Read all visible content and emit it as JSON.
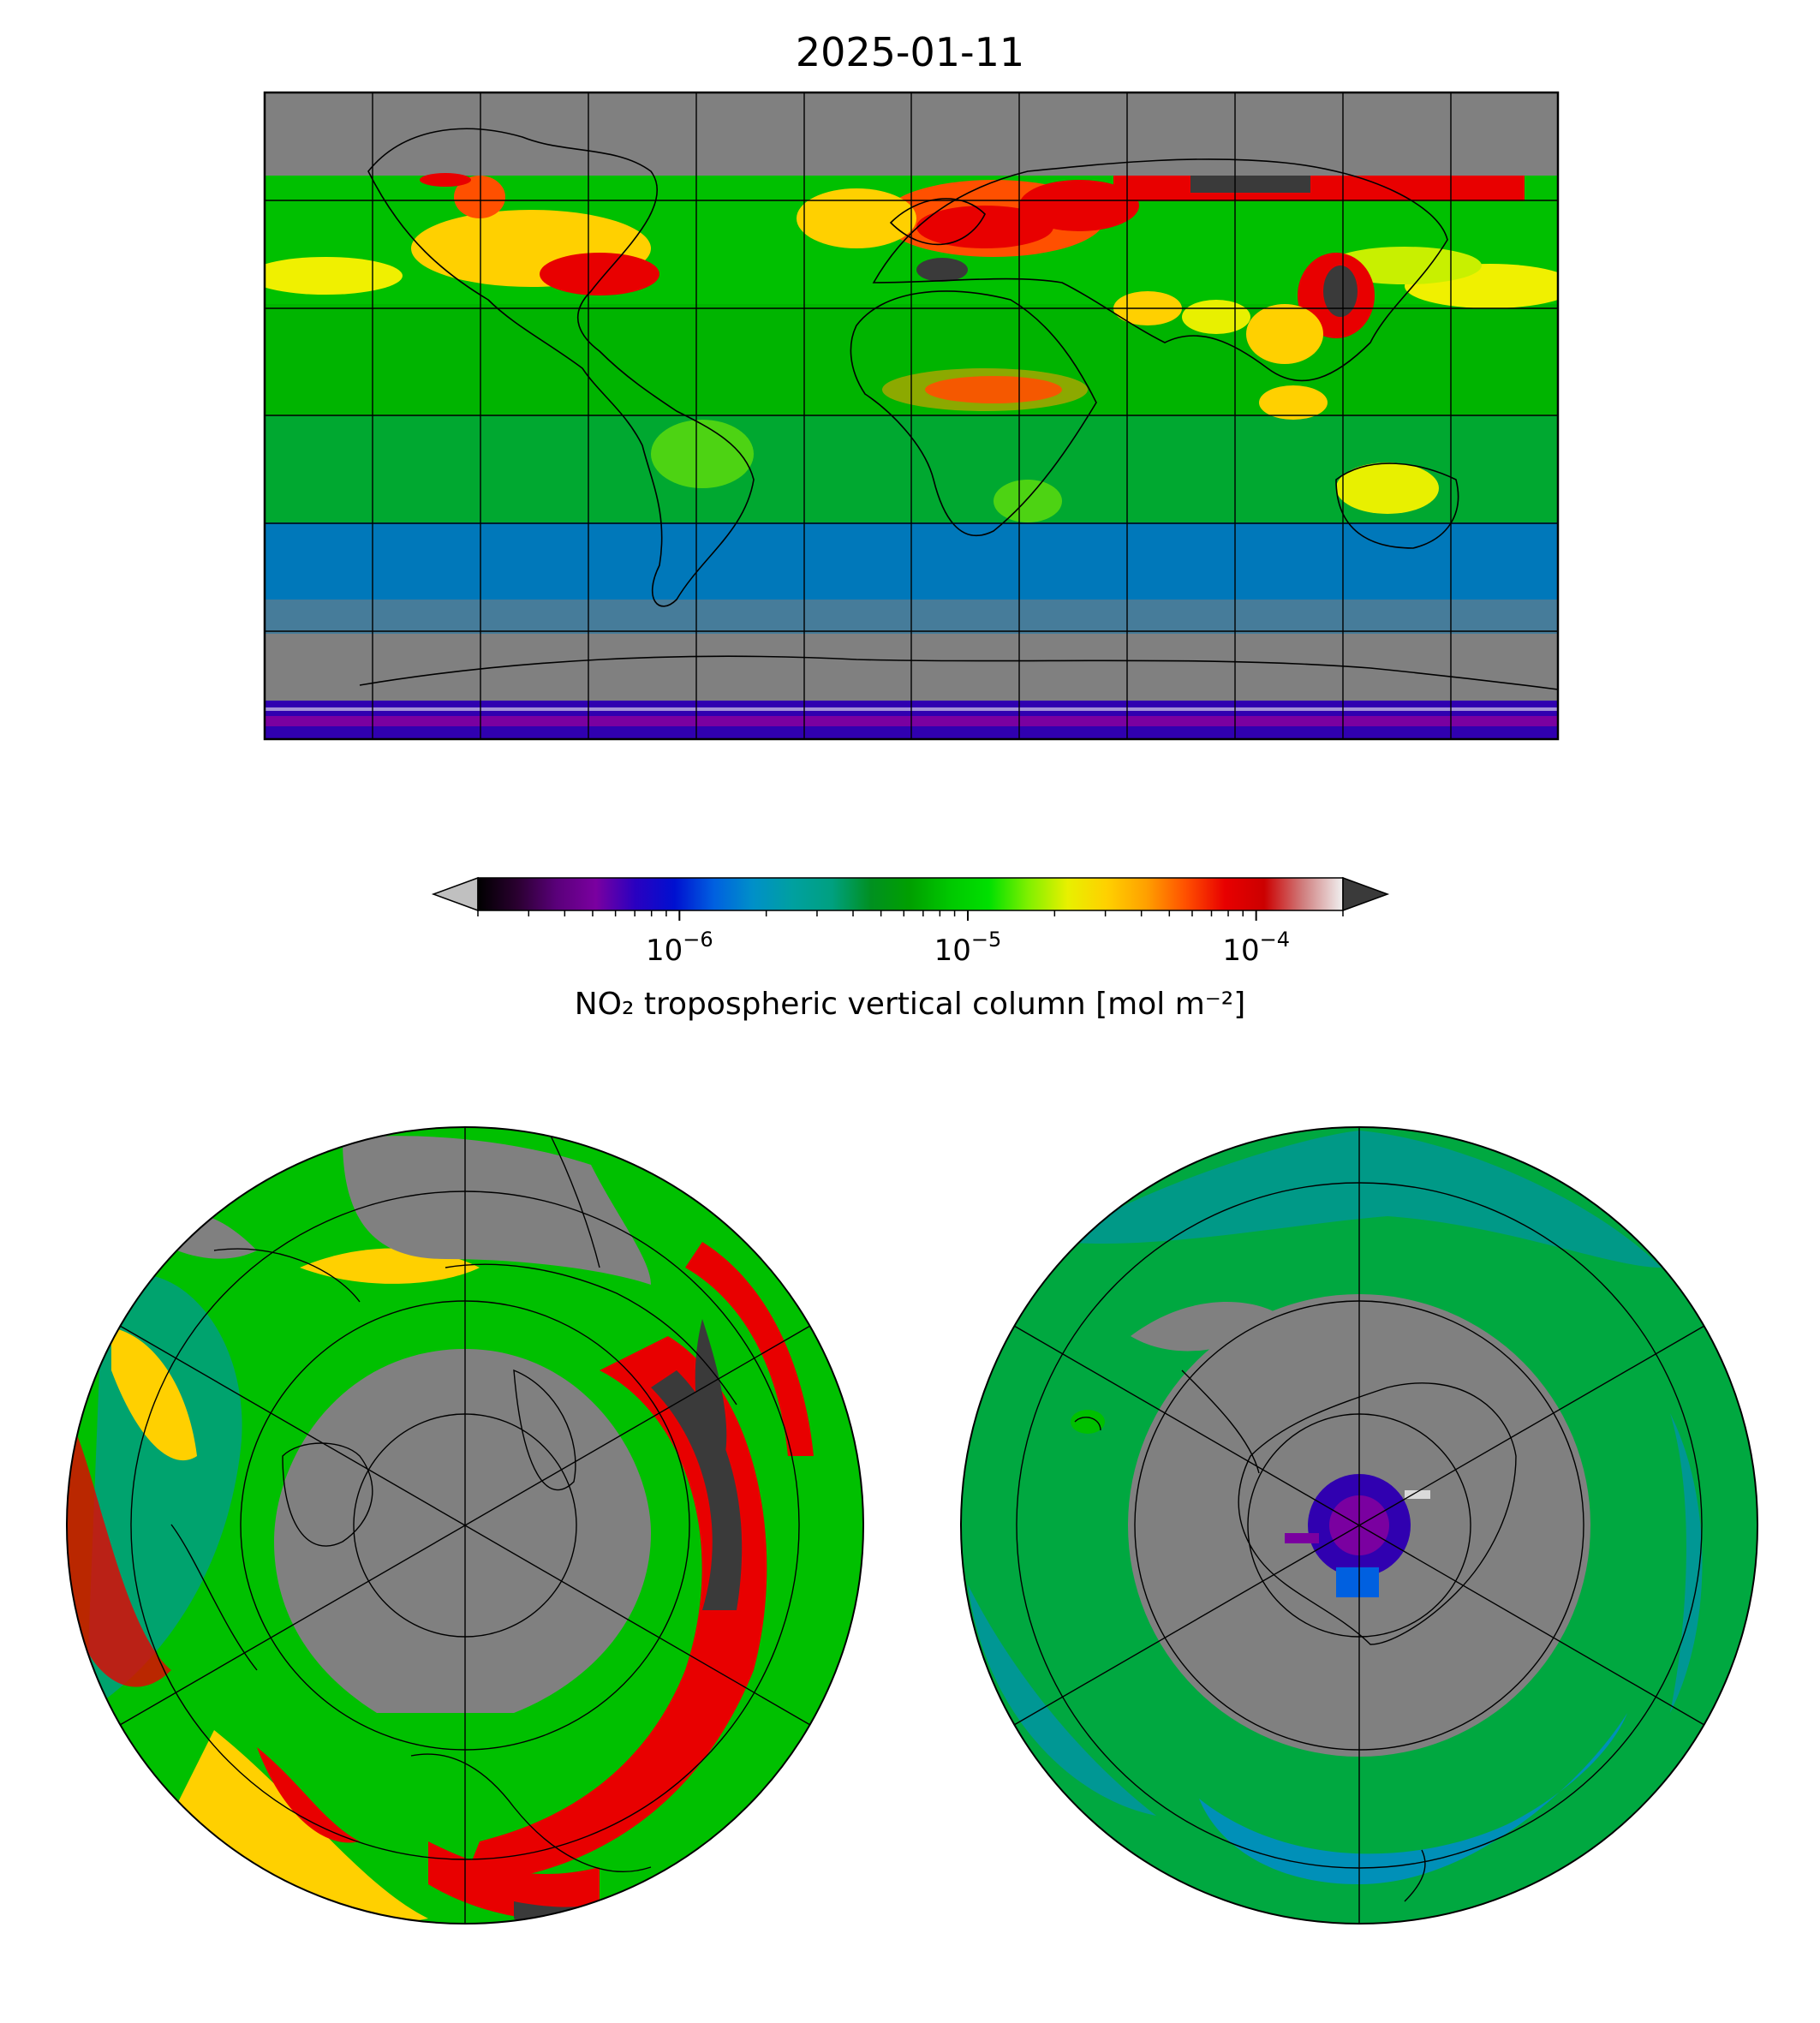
{
  "title": "2025-01-11",
  "colorbar": {
    "label": "NO₂ tropospheric vertical column [mol m⁻²]",
    "scale": "log",
    "range": [
      2e-07,
      0.0002
    ],
    "extend": "both",
    "under_color": "#c0c0c0",
    "over_color": "#3a3a3a",
    "ticks": [
      {
        "value": 1e-06,
        "base": "10",
        "exponent": "−6"
      },
      {
        "value": 1e-05,
        "base": "10",
        "exponent": "−5"
      },
      {
        "value": 0.0001,
        "base": "10",
        "exponent": "−4"
      }
    ],
    "colors": [
      "#000000",
      "#2a0030",
      "#5a007a",
      "#7a00a0",
      "#2a00c0",
      "#0010d0",
      "#0060e0",
      "#0090c8",
      "#00a0a0",
      "#00a080",
      "#009020",
      "#00a000",
      "#00c800",
      "#00e000",
      "#80f000",
      "#e8f000",
      "#ffd000",
      "#ffa000",
      "#ff5000",
      "#e80000",
      "#cc0000",
      "#d08080",
      "#f0f0f0"
    ]
  },
  "maps": {
    "global": {
      "projection": "PlateCarree",
      "gridlines": true,
      "missing_color": "#808080"
    },
    "north_pole": {
      "projection": "NorthPolarStereo",
      "gridlines": true,
      "missing_color": "#808080"
    },
    "south_pole": {
      "projection": "SouthPolarStereo",
      "gridlines": true,
      "missing_color": "#808080"
    }
  }
}
